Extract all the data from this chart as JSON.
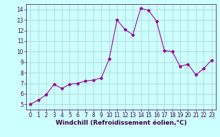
{
  "x": [
    0,
    1,
    2,
    3,
    4,
    5,
    6,
    7,
    8,
    9,
    10,
    11,
    12,
    13,
    14,
    15,
    16,
    17,
    18,
    19,
    20,
    21,
    22,
    23
  ],
  "y": [
    5.0,
    5.4,
    5.9,
    6.9,
    6.5,
    6.9,
    7.0,
    7.2,
    7.3,
    7.5,
    9.3,
    13.0,
    12.1,
    11.6,
    14.1,
    13.9,
    12.9,
    10.1,
    10.0,
    8.6,
    8.8,
    7.8,
    8.4,
    9.2
  ],
  "line_color": "#990099",
  "marker": "*",
  "marker_size": 3,
  "bg_color": "#ccffff",
  "grid_color": "#aacccc",
  "xlabel": "Windchill (Refroidissement éolien,°C)",
  "xlabel_fontsize": 6.5,
  "tick_fontsize": 5.5,
  "xlim": [
    -0.5,
    23.5
  ],
  "ylim": [
    4.5,
    14.5
  ],
  "yticks": [
    5,
    6,
    7,
    8,
    9,
    10,
    11,
    12,
    13,
    14
  ],
  "xticks": [
    0,
    1,
    2,
    3,
    4,
    5,
    6,
    7,
    8,
    9,
    10,
    11,
    12,
    13,
    14,
    15,
    16,
    17,
    18,
    19,
    20,
    21,
    22,
    23
  ],
  "line_width": 0.8,
  "spine_color": "#440044",
  "label_color": "#440044"
}
